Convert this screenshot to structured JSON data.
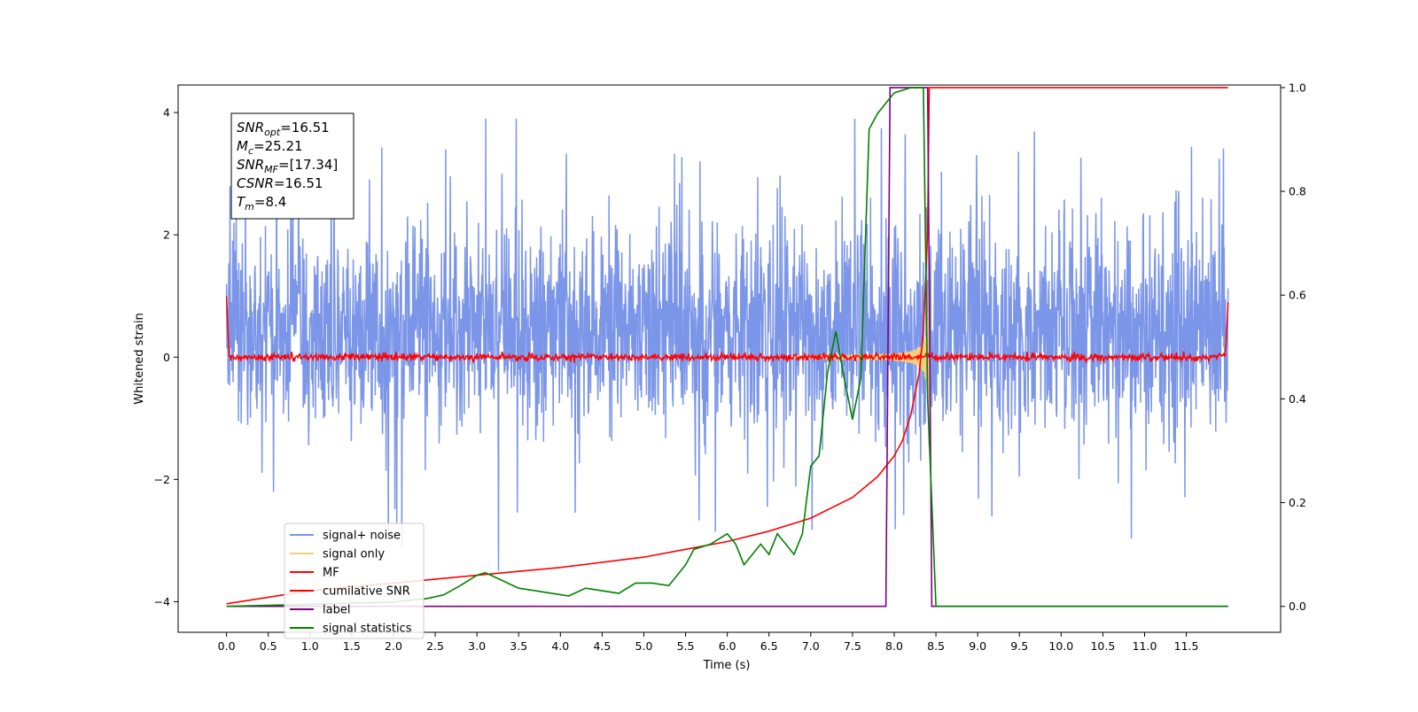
{
  "chart_data": {
    "type": "line",
    "xlabel": "Time (s)",
    "ylabel": "Whitened strain",
    "xlim": [
      -0.58,
      12.63
    ],
    "ylim": [
      -4.5,
      4.45
    ],
    "ylim_right": [
      -0.05,
      1.005
    ],
    "xticks": [
      "0.0",
      "0.5",
      "1.0",
      "1.5",
      "2.0",
      "2.5",
      "3.0",
      "3.5",
      "4.0",
      "4.5",
      "5.0",
      "5.5",
      "6.0",
      "6.5",
      "7.0",
      "7.5",
      "8.0",
      "8.5",
      "9.0",
      "9.5",
      "10.0",
      "10.5",
      "11.0",
      "11.5"
    ],
    "yticks_left": [
      "4",
      "2",
      "0",
      "−2",
      "−4"
    ],
    "yticks_left_values": [
      4,
      2,
      0,
      -2,
      -4
    ],
    "yticks_right": [
      "1.0",
      "0.8",
      "0.6",
      "0.4",
      "0.2",
      "0.0"
    ],
    "yticks_right_values": [
      1.0,
      0.8,
      0.6,
      0.4,
      0.2,
      0.0
    ],
    "grid": false,
    "legend_position": "lower-left",
    "colors": {
      "signal_noise": "#7b95e8",
      "signal_only": "#f5cf7a",
      "mf": "#ff0000",
      "cumulative_snr": "#ff0000",
      "label": "#800080",
      "signal_statistics": "#008000"
    },
    "series": [
      {
        "name": "signal+ noise",
        "key": "signal_noise",
        "axis": "left",
        "t_range": [
          0.0,
          12.0
        ],
        "approx_envelope": [
          -3.5,
          3.9
        ]
      },
      {
        "name": "signal only",
        "key": "signal_only",
        "axis": "left",
        "t_range": [
          0.0,
          8.42
        ],
        "approx_peak_amplitude": 2.0
      },
      {
        "name": "MF",
        "key": "mf",
        "axis": "left",
        "t_range": [
          0.0,
          12.0
        ],
        "approx_envelope": [
          -0.1,
          0.15
        ]
      },
      {
        "name": "cumilative SNR",
        "key": "cumulative_snr",
        "axis": "right",
        "x": [
          0.0,
          1.0,
          2.0,
          3.0,
          4.0,
          5.0,
          5.5,
          6.0,
          6.5,
          7.0,
          7.5,
          7.8,
          8.0,
          8.1,
          8.2,
          8.3,
          8.35,
          8.4,
          8.42,
          12.0
        ],
        "y": [
          0.005,
          0.03,
          0.045,
          0.06,
          0.075,
          0.095,
          0.11,
          0.125,
          0.145,
          0.17,
          0.21,
          0.25,
          0.29,
          0.32,
          0.37,
          0.45,
          0.53,
          0.72,
          1.0,
          1.0
        ]
      },
      {
        "name": "label",
        "key": "label",
        "axis": "right",
        "x": [
          0.0,
          7.9,
          7.95,
          8.4,
          8.45,
          12.0
        ],
        "y": [
          0.0,
          0.0,
          1.0,
          1.0,
          0.0,
          0.0
        ]
      },
      {
        "name": "signal statistics",
        "key": "signal_statistics",
        "axis": "right",
        "x": [
          0.0,
          0.5,
          1.0,
          1.5,
          2.0,
          2.2,
          2.4,
          2.6,
          2.8,
          3.0,
          3.1,
          3.3,
          3.5,
          3.7,
          3.9,
          4.1,
          4.3,
          4.5,
          4.7,
          4.9,
          5.1,
          5.3,
          5.4,
          5.5,
          5.6,
          5.8,
          6.0,
          6.1,
          6.2,
          6.3,
          6.4,
          6.5,
          6.6,
          6.7,
          6.8,
          6.9,
          7.0,
          7.1,
          7.2,
          7.3,
          7.4,
          7.5,
          7.6,
          7.7,
          7.8,
          7.9,
          8.0,
          8.2,
          8.35,
          8.4,
          8.5,
          9.0,
          12.0
        ],
        "y": [
          0.0,
          0.002,
          0.004,
          0.006,
          0.008,
          0.012,
          0.015,
          0.022,
          0.04,
          0.06,
          0.065,
          0.05,
          0.035,
          0.03,
          0.025,
          0.02,
          0.035,
          0.03,
          0.025,
          0.045,
          0.045,
          0.04,
          0.06,
          0.08,
          0.11,
          0.12,
          0.14,
          0.12,
          0.08,
          0.1,
          0.12,
          0.1,
          0.14,
          0.12,
          0.1,
          0.14,
          0.27,
          0.29,
          0.45,
          0.53,
          0.44,
          0.36,
          0.44,
          0.92,
          0.95,
          0.97,
          0.99,
          1.0,
          1.0,
          0.4,
          0.0,
          0.0,
          0.0
        ]
      }
    ],
    "annotation": {
      "lines": [
        {
          "base": "SNR",
          "sub": "opt",
          "value": "=16.51"
        },
        {
          "base": "M",
          "sub": "c",
          "value": "=25.21"
        },
        {
          "base": "SNR",
          "sub": "MF",
          "value": "=[17.34]"
        },
        {
          "base": "CSNR",
          "sub": "",
          "value": "=16.51"
        },
        {
          "base": "T",
          "sub": "m",
          "value": "=8.4"
        }
      ]
    }
  }
}
